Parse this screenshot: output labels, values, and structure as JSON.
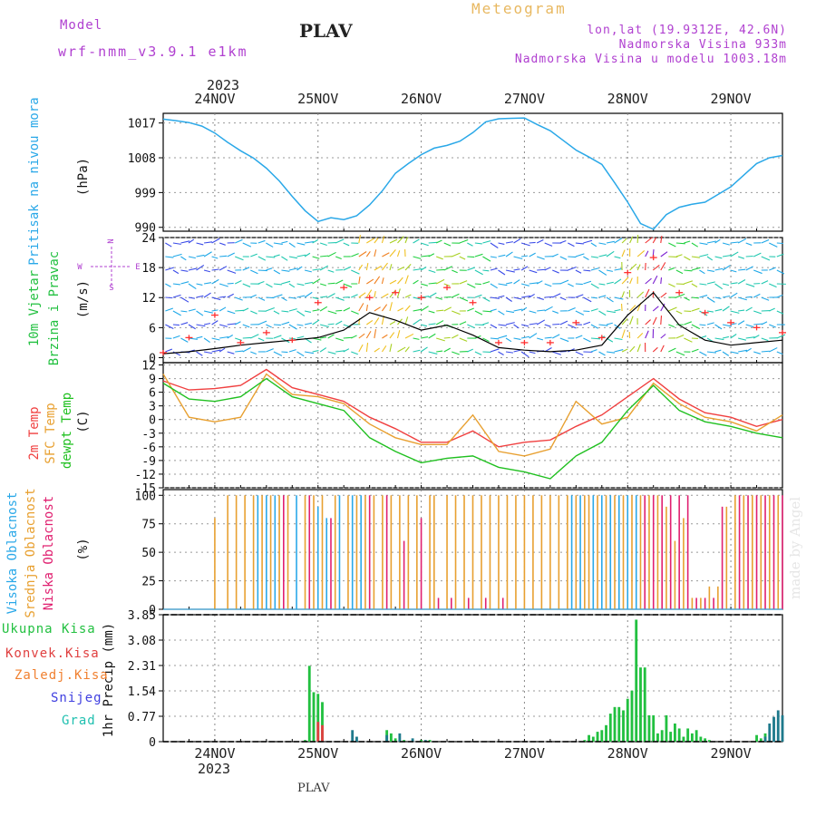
{
  "header": {
    "model_label": "Model",
    "model_version": "wrf-nmm_v3.9.1 e1km",
    "title": "PLAV",
    "product": "Meteogram",
    "lonlat": "lon,lat (19.9312E, 42.6N)",
    "elevation": "Nadmorska Visina 933m",
    "model_elevation": "Nadmorska Visina u modelu 1003.18m"
  },
  "footer": {
    "station": "PLAV",
    "watermark": "made by Angel"
  },
  "time_axis": {
    "year": "2023",
    "days": [
      "24NOV",
      "25NOV",
      "26NOV",
      "27NOV",
      "28NOV",
      "29NOV"
    ]
  },
  "colors": {
    "pressure": "#2aa8e8",
    "wind_label": "#22c040",
    "temp2m": "#f04040",
    "sfc": "#e8a030",
    "dew": "#20c020",
    "high": "#2aa8e8",
    "mid": "#e8a030",
    "low": "#e02070",
    "total": "#22c040",
    "conv": "#e04040",
    "frz": "#f08030",
    "snow": "#4040e0",
    "grad": "#20c0b0",
    "windgust": "#ff3030"
  },
  "chart_data": [
    {
      "type": "line",
      "title": "",
      "ylabel_name": "Pritisak na nivou mora",
      "ylabel_unit": "(hPa)",
      "y_ticks": [
        "1017",
        "1008",
        "999",
        "990"
      ],
      "ylim": [
        989,
        1019.5
      ],
      "x": [
        0,
        3,
        6,
        9,
        12,
        15,
        18,
        21,
        24,
        27,
        30,
        33,
        36,
        39,
        42,
        45,
        48,
        51,
        54,
        57,
        60,
        63,
        66,
        69,
        72,
        75,
        78,
        81,
        84,
        87,
        90,
        93,
        96,
        99,
        102,
        105,
        108,
        111,
        114,
        117,
        120,
        123,
        126,
        129,
        132,
        135,
        138,
        141,
        144
      ],
      "series": [
        {
          "name": "pressure",
          "values": [
            1018.0,
            1017.6,
            1017.1,
            1016.2,
            1014.4,
            1012.0,
            1009.8,
            1007.9,
            1005.3,
            1002.0,
            998.0,
            994.3,
            991.5,
            992.5,
            992.0,
            993.0,
            995.8,
            999.5,
            1004.0,
            1006.5,
            1008.8,
            1010.5,
            1011.2,
            1012.3,
            1014.5,
            1017.3,
            1018.1,
            1018.2,
            1018.3,
            1016.6,
            1015.0,
            1012.5,
            1010.0,
            1008.2,
            1006.3,
            1001.5,
            996.5,
            991.0,
            989.5,
            993.3,
            995.2,
            996.0,
            996.5,
            998.5,
            1000.5,
            1003.5,
            1006.5,
            1008.0,
            1008.6
          ]
        }
      ]
    },
    {
      "type": "line",
      "title": "",
      "ylabel_name": [
        "10m Vjetar",
        "Brzina i Pravac"
      ],
      "ylabel_unit": "(m/s)",
      "compass": [
        "N",
        "E",
        "S",
        "W"
      ],
      "y_ticks": [
        "24",
        "18",
        "12",
        "6",
        "0"
      ],
      "ylim": [
        -1,
        24
      ],
      "x": [
        0,
        6,
        12,
        18,
        24,
        30,
        36,
        42,
        48,
        54,
        60,
        66,
        72,
        78,
        84,
        90,
        96,
        102,
        108,
        114,
        120,
        126,
        132,
        138,
        144
      ],
      "series": [
        {
          "name": "speed",
          "values": [
            0.8,
            1.2,
            1.8,
            2.5,
            3.0,
            3.5,
            4.0,
            5.5,
            9.0,
            7.5,
            5.5,
            6.5,
            4.5,
            2.0,
            1.5,
            1.2,
            1.5,
            2.5,
            8.5,
            13.0,
            6.5,
            3.5,
            2.5,
            3.0,
            3.5
          ]
        },
        {
          "name": "gust",
          "values": [
            1.0,
            4.0,
            8.5,
            3.0,
            5.0,
            3.5,
            11.0,
            14.0,
            12.0,
            13.0,
            12.0,
            14.0,
            11.0,
            3.0,
            3.0,
            3.0,
            7.0,
            4.0,
            17.0,
            20.0,
            13.0,
            9.0,
            7.0,
            6.0,
            5.0
          ]
        }
      ]
    },
    {
      "type": "line",
      "title": "",
      "ylabel_name": [
        "2m Temp",
        "SFC Temp",
        "dewpt Temp"
      ],
      "ylabel_unit": "(C)",
      "y_ticks": [
        "12",
        "9",
        "6",
        "3",
        "0",
        "-3",
        "-6",
        "-9",
        "-12",
        "-15"
      ],
      "ylim": [
        -15,
        12.5
      ],
      "x": [
        0,
        6,
        12,
        18,
        24,
        30,
        36,
        42,
        48,
        54,
        60,
        66,
        72,
        78,
        84,
        90,
        96,
        102,
        108,
        114,
        120,
        126,
        132,
        138,
        144
      ],
      "series": [
        {
          "name": "2m Temp",
          "values": [
            8.5,
            6.5,
            6.8,
            7.5,
            11.0,
            7.0,
            5.5,
            4.0,
            0.5,
            -2.0,
            -5.0,
            -5.0,
            -2.5,
            -6.0,
            -5.0,
            -4.5,
            -1.5,
            1.0,
            5.0,
            9.0,
            4.5,
            1.5,
            0.5,
            -1.5,
            0.0
          ]
        },
        {
          "name": "SFC Temp",
          "values": [
            10.0,
            0.5,
            -0.5,
            0.5,
            10.0,
            5.5,
            5.0,
            3.5,
            -1.0,
            -4.0,
            -5.5,
            -5.5,
            1.0,
            -7.0,
            -8.0,
            -6.5,
            4.0,
            -1.0,
            0.5,
            8.0,
            3.5,
            0.5,
            -0.5,
            -2.5,
            1.0
          ]
        },
        {
          "name": "dewpt Temp",
          "values": [
            8.0,
            4.5,
            4.0,
            5.0,
            9.0,
            5.0,
            3.5,
            2.0,
            -4.0,
            -7.0,
            -9.5,
            -8.5,
            -8.0,
            -10.5,
            -11.5,
            -13.0,
            -8.0,
            -5.0,
            2.0,
            7.5,
            2.0,
            -0.5,
            -1.5,
            -3.0,
            -4.0
          ]
        }
      ]
    },
    {
      "type": "bar",
      "title": "",
      "ylabel_name": [
        "Visoka Oblacnost",
        "Srednja Oblacnost",
        "Niska Oblacnost"
      ],
      "ylabel_unit": "(%)",
      "y_ticks": [
        "100",
        "75",
        "50",
        "25",
        "0"
      ],
      "ylim": [
        0,
        105
      ],
      "bar_width_hours": 0.4,
      "series": [
        {
          "name": "Srednja Oblacnost",
          "x": [
            12,
            15,
            17,
            19,
            21,
            23,
            25,
            27,
            29,
            33,
            35,
            37,
            40,
            43,
            45,
            47,
            49,
            51,
            53,
            55,
            57,
            59,
            62,
            63,
            66,
            68,
            70,
            72,
            74,
            76,
            78,
            80,
            82,
            84,
            86,
            88,
            90,
            92,
            94,
            96,
            98,
            99,
            101,
            103,
            105,
            107,
            109,
            111,
            113,
            115,
            117,
            119,
            121,
            123,
            125,
            127,
            129,
            131,
            133,
            135,
            137,
            139,
            141,
            143
          ],
          "values": [
            80,
            100,
            100,
            100,
            100,
            100,
            100,
            100,
            100,
            100,
            100,
            100,
            100,
            100,
            100,
            100,
            100,
            100,
            100,
            100,
            100,
            100,
            100,
            100,
            100,
            100,
            100,
            100,
            100,
            100,
            100,
            100,
            100,
            100,
            100,
            100,
            100,
            100,
            100,
            100,
            100,
            100,
            100,
            100,
            100,
            100,
            100,
            100,
            100,
            100,
            90,
            60,
            80,
            10,
            10,
            20,
            20,
            90,
            100,
            100,
            100,
            100,
            100,
            100
          ]
        },
        {
          "name": "Visoka Oblacnost",
          "x": [
            22,
            24,
            26,
            31,
            36,
            38,
            41,
            44,
            46,
            95,
            97,
            100,
            102,
            104,
            106,
            108,
            110
          ],
          "values": [
            100,
            100,
            100,
            100,
            90,
            80,
            100,
            100,
            100,
            100,
            100,
            100,
            100,
            100,
            100,
            100,
            100
          ]
        },
        {
          "name": "Niska Oblacnost",
          "x": [
            28,
            34,
            39,
            48,
            52,
            56,
            60,
            64,
            67,
            71,
            75,
            79,
            112,
            114,
            116,
            118,
            120,
            122,
            124,
            126,
            128,
            130,
            134,
            136,
            138,
            140,
            142,
            144
          ],
          "values": [
            100,
            100,
            80,
            100,
            100,
            60,
            80,
            10,
            10,
            10,
            10,
            10,
            100,
            100,
            100,
            100,
            100,
            100,
            10,
            10,
            10,
            90,
            100,
            100,
            100,
            100,
            100,
            100
          ]
        }
      ]
    },
    {
      "type": "bar",
      "title": "",
      "ylabel_unit": "1hr Precip (mm)",
      "legend": [
        "Ukupna Kisa",
        "Konvek.Kisa",
        "Zaledj.Kisa",
        "Snijeg",
        "Grad"
      ],
      "y_ticks": [
        "3.85",
        "3.08",
        "2.31",
        "1.54",
        "0.77",
        "0"
      ],
      "ylim": [
        0,
        3.85
      ],
      "bar_width_hours": 0.6,
      "series": [
        {
          "name": "Ukupna Kisa",
          "x": [
            33,
            34,
            35,
            36,
            37,
            52,
            53,
            54,
            56,
            60,
            62,
            98,
            99,
            100,
            101,
            102,
            103,
            104,
            105,
            106,
            107,
            108,
            109,
            110,
            111,
            112,
            113,
            114,
            115,
            116,
            117,
            118,
            119,
            120,
            121,
            122,
            123,
            124,
            125,
            126,
            127,
            138,
            139,
            140
          ],
          "values": [
            0.05,
            2.3,
            1.5,
            1.45,
            1.2,
            0.35,
            0.25,
            0.1,
            0.05,
            0.05,
            0.05,
            0.05,
            0.2,
            0.15,
            0.3,
            0.35,
            0.5,
            0.85,
            1.05,
            1.05,
            0.95,
            1.3,
            1.55,
            3.7,
            2.25,
            2.25,
            0.8,
            0.8,
            0.25,
            0.35,
            0.8,
            0.3,
            0.55,
            0.4,
            0.15,
            0.4,
            0.25,
            0.35,
            0.15,
            0.1,
            0.05,
            0.2,
            0.1,
            0.25
          ]
        },
        {
          "name": "Konvek.Kisa",
          "x": [
            36,
            37
          ],
          "values": [
            0.6,
            0.5
          ]
        },
        {
          "name": "Grad",
          "x": [
            44,
            45,
            52,
            55,
            58,
            61,
            140,
            141,
            142,
            143,
            144
          ],
          "values": [
            0.35,
            0.15,
            0.2,
            0.25,
            0.1,
            0.05,
            0.15,
            0.55,
            0.75,
            0.95,
            0.8
          ]
        }
      ]
    }
  ]
}
